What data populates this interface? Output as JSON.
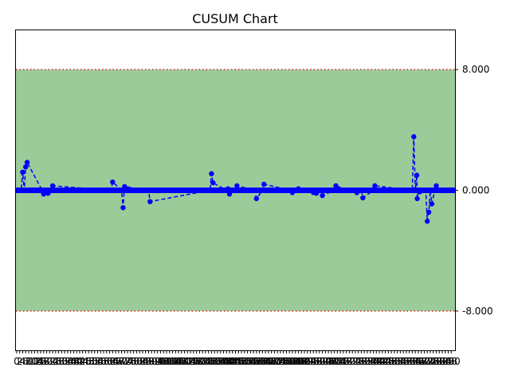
{
  "chart_data": {
    "type": "line",
    "title": "CUSUM Chart",
    "xlabel": "",
    "ylabel": "",
    "xlim": [
      -0.5,
      292.5
    ],
    "ylim": [
      -10.6,
      10.6
    ],
    "yaxis_side": "right",
    "grid": false,
    "control_limits": {
      "upper": 8.0,
      "lower": -8.0,
      "center": 0.0
    },
    "control_region_color": "#9bcb98",
    "limit_line_color": "#e02020",
    "series_color": "#0000ff",
    "center_band_color": "#0000ff",
    "ytick_values": [
      8.0,
      0.0,
      -8.0
    ],
    "ytick_labels": [
      "8.000",
      "0.000",
      "-8.000"
    ],
    "xtick_values": [
      0,
      2,
      4,
      6,
      8,
      10,
      12,
      14,
      16,
      18,
      20,
      22,
      24,
      26,
      28,
      30,
      32,
      34,
      36,
      38,
      40,
      42,
      44,
      46,
      48,
      50,
      52,
      54,
      56,
      58,
      60,
      62,
      64,
      66,
      68,
      70,
      72,
      74,
      76,
      78,
      80,
      82,
      84,
      86,
      88,
      90,
      92,
      94,
      96,
      98,
      100,
      102,
      104,
      106,
      108,
      110,
      112,
      114,
      116,
      118,
      120,
      122,
      124,
      126,
      128,
      130,
      132,
      134,
      136,
      138,
      140,
      142,
      144,
      146,
      148,
      150,
      152,
      154,
      156,
      158,
      160,
      162,
      164,
      166,
      168,
      170,
      172,
      174,
      176,
      178,
      180,
      182,
      184,
      186,
      188,
      190,
      192,
      194,
      196,
      198,
      200,
      202,
      204,
      206,
      208,
      210,
      212,
      214,
      216,
      218,
      220,
      222,
      224,
      226,
      228,
      230,
      232,
      234,
      236,
      238,
      240,
      242,
      244,
      246,
      248,
      250,
      252,
      254,
      256,
      258,
      260,
      262,
      264,
      266,
      268,
      270,
      272,
      274,
      276,
      278,
      280,
      282,
      284,
      286,
      288,
      290
    ],
    "xtick_labels": [
      "0",
      "2",
      "4",
      "6",
      "8",
      "10",
      "12",
      "14",
      "16",
      "18",
      "20",
      "22",
      "24",
      "26",
      "28",
      "30",
      "32",
      "34",
      "36",
      "38",
      "40",
      "42",
      "44",
      "46",
      "48",
      "50",
      "52",
      "54",
      "56",
      "58",
      "60",
      "62",
      "64",
      "66",
      "68",
      "70",
      "72",
      "74",
      "76",
      "78",
      "80",
      "82",
      "84",
      "86",
      "88",
      "90",
      "92",
      "94",
      "96",
      "98",
      "100",
      "102",
      "104",
      "106",
      "108",
      "110",
      "112",
      "114",
      "116",
      "118",
      "120",
      "122",
      "124",
      "126",
      "128",
      "130",
      "132",
      "134",
      "136",
      "138",
      "140",
      "142",
      "144",
      "146",
      "148",
      "150",
      "152",
      "154",
      "156",
      "158",
      "160",
      "162",
      "164",
      "166",
      "168",
      "170",
      "172",
      "174",
      "176",
      "178",
      "180",
      "182",
      "184",
      "186",
      "188",
      "190",
      "192",
      "194",
      "196",
      "198",
      "200",
      "202",
      "204",
      "206",
      "208",
      "210",
      "212",
      "214",
      "216",
      "218",
      "220",
      "222",
      "224",
      "226",
      "228",
      "230",
      "232",
      "234",
      "236",
      "238",
      "240",
      "242",
      "244",
      "246",
      "248",
      "250",
      "252",
      "254",
      "256",
      "258",
      "260",
      "262",
      "264",
      "266",
      "268",
      "270",
      "272",
      "274",
      "276",
      "278",
      "280",
      "282",
      "284",
      "286",
      "288",
      "290"
    ],
    "points": [
      {
        "x": 4,
        "y": 1.2
      },
      {
        "x": 6,
        "y": 1.55
      },
      {
        "x": 7,
        "y": 1.85
      },
      {
        "x": 18,
        "y": -0.25
      },
      {
        "x": 21,
        "y": -0.2
      },
      {
        "x": 24,
        "y": 0.3
      },
      {
        "x": 64,
        "y": 0.55
      },
      {
        "x": 71,
        "y": -1.15
      },
      {
        "x": 72,
        "y": 0.25
      },
      {
        "x": 89,
        "y": -0.75
      },
      {
        "x": 130,
        "y": 1.1
      },
      {
        "x": 131,
        "y": 0.5
      },
      {
        "x": 141,
        "y": 0.1
      },
      {
        "x": 142,
        "y": -0.25
      },
      {
        "x": 147,
        "y": 0.3
      },
      {
        "x": 160,
        "y": -0.55
      },
      {
        "x": 165,
        "y": 0.4
      },
      {
        "x": 184,
        "y": -0.15
      },
      {
        "x": 188,
        "y": 0.1
      },
      {
        "x": 198,
        "y": -0.15
      },
      {
        "x": 200,
        "y": -0.2
      },
      {
        "x": 204,
        "y": -0.35
      },
      {
        "x": 213,
        "y": 0.3
      },
      {
        "x": 215,
        "y": 0.1
      },
      {
        "x": 227,
        "y": -0.15
      },
      {
        "x": 231,
        "y": -0.5
      },
      {
        "x": 239,
        "y": 0.3
      },
      {
        "x": 265,
        "y": 3.55
      },
      {
        "x": 267,
        "y": 1.0
      },
      {
        "x": 267.3,
        "y": -0.55
      },
      {
        "x": 269,
        "y": -0.1
      },
      {
        "x": 274,
        "y": -2.05
      },
      {
        "x": 275,
        "y": -1.45
      },
      {
        "x": 277,
        "y": -0.9
      },
      {
        "x": 280,
        "y": 0.3
      }
    ]
  }
}
